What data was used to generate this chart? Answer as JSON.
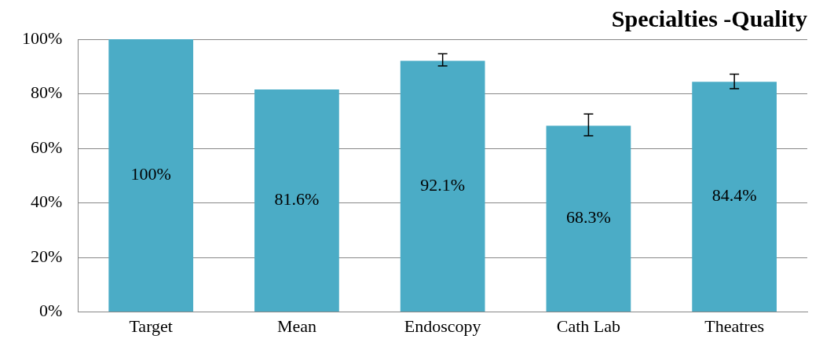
{
  "chart_data": {
    "type": "bar",
    "title": "Specialties -Quality",
    "categories": [
      "Target",
      "Mean",
      "Endoscopy",
      "Cath Lab",
      "Theatres"
    ],
    "values": [
      100,
      81.6,
      92.1,
      68.3,
      84.4
    ],
    "errors": [
      null,
      null,
      [
        90.2,
        94.7
      ],
      [
        64.6,
        72.6
      ],
      [
        81.9,
        87.2
      ]
    ],
    "value_labels": [
      "100%",
      "81.6%",
      "92.1%",
      "68.3%",
      "84.4%"
    ],
    "color": "#4bacc6",
    "ylim": [
      0,
      100
    ],
    "yticks": [
      {
        "value": 0,
        "label": "0%"
      },
      {
        "value": 20,
        "label": "20%"
      },
      {
        "value": 40,
        "label": "40%"
      },
      {
        "value": 60,
        "label": "60%"
      },
      {
        "value": 80,
        "label": "80%"
      },
      {
        "value": 100,
        "label": "100%"
      }
    ],
    "grid": "y"
  }
}
